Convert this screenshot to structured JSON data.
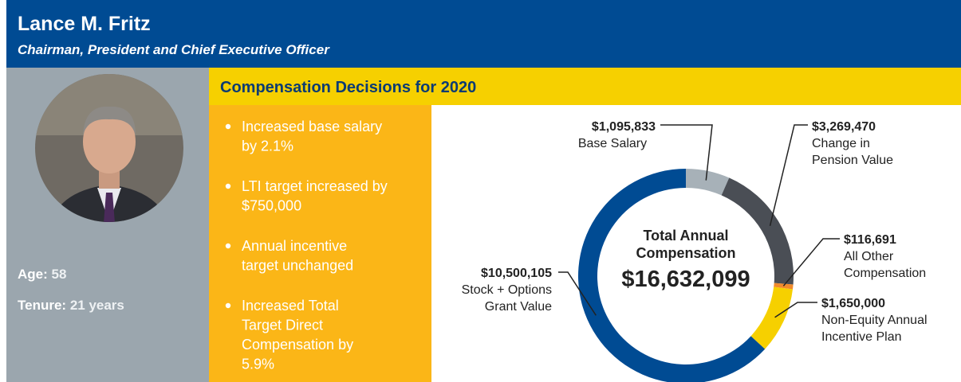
{
  "header": {
    "title": "Lance M. Fritz",
    "subtitle": "Chairman, President and Chief Executive Officer"
  },
  "profile": {
    "age_label": "Age:",
    "age": 58,
    "tenure_label": "Tenure:",
    "tenure": "21 years"
  },
  "decisions": {
    "title": "Compensation Decisions for 2020",
    "items": [
      [
        "Increased base salary",
        "by 2.1%"
      ],
      [
        "LTI target increased by",
        "$750,000"
      ],
      [
        "Annual incentive",
        "target unchanged"
      ],
      [
        "Increased Total",
        "Target Direct",
        "Compensation by",
        "5.9%"
      ]
    ]
  },
  "chart_data": {
    "type": "donut",
    "center_title": [
      "Total Annual",
      "Compensation"
    ],
    "total": "$16,632,099",
    "categories": [
      [
        "Base Salary"
      ],
      [
        "Change in",
        "Pension Value"
      ],
      [
        "All Other",
        "Compensation"
      ],
      [
        "Non-Equity Annual",
        "Incentive Plan"
      ],
      [
        "Stock + Options",
        "Grant Value"
      ]
    ],
    "values": [
      1095833,
      3269470,
      116691,
      1650000,
      10500105
    ],
    "value_labels": [
      "$1,095,833",
      "$3,269,470",
      "$116,691",
      "$1,650,000",
      "$10,500,105"
    ],
    "colors": [
      "#a7b1b8",
      "#4a4e55",
      "#f08a2c",
      "#f6d000",
      "#004b93"
    ]
  }
}
